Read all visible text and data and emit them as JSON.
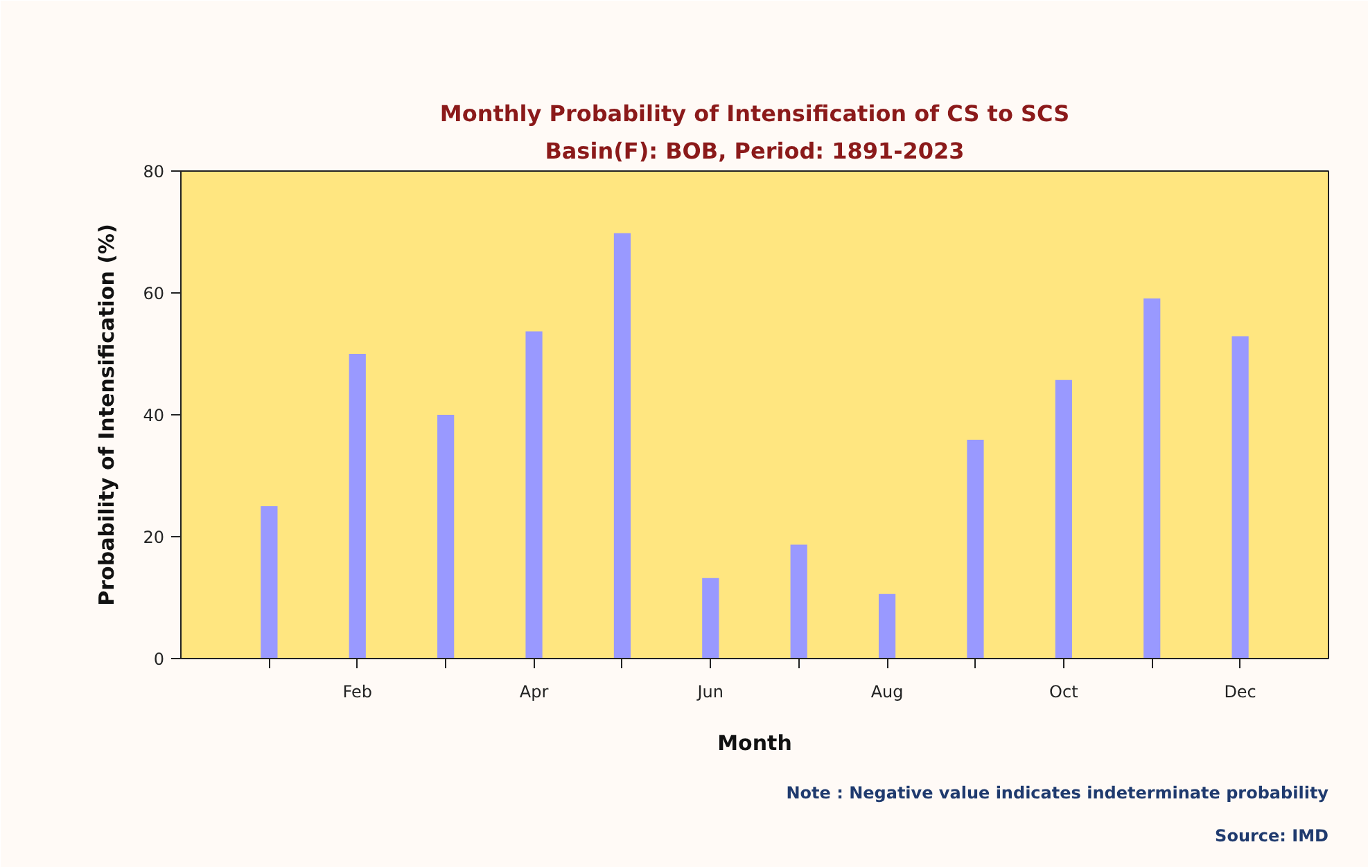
{
  "chart_data": {
    "type": "bar",
    "title": "Monthly Probability of Intensification of CS to SCS",
    "subtitle": "Basin(F): BOB, Period: 1891-2023",
    "xlabel": "Month",
    "ylabel": "Probability of Intensification (%)",
    "categories": [
      null,
      "Feb",
      null,
      "Apr",
      null,
      "Jun",
      null,
      "Aug",
      null,
      "Oct",
      null,
      "Dec"
    ],
    "values": [
      25,
      50,
      40,
      53.7,
      69.8,
      13.2,
      18.7,
      10.6,
      35.9,
      45.7,
      59.1,
      52.9
    ],
    "color": "#9999ff",
    "ylim": [
      0,
      80
    ],
    "yticks": [
      0,
      20,
      40,
      60,
      80
    ],
    "grid": false,
    "annotations": [
      "Note : Negative value indicates indeterminate probability",
      "Source: IMD"
    ]
  }
}
